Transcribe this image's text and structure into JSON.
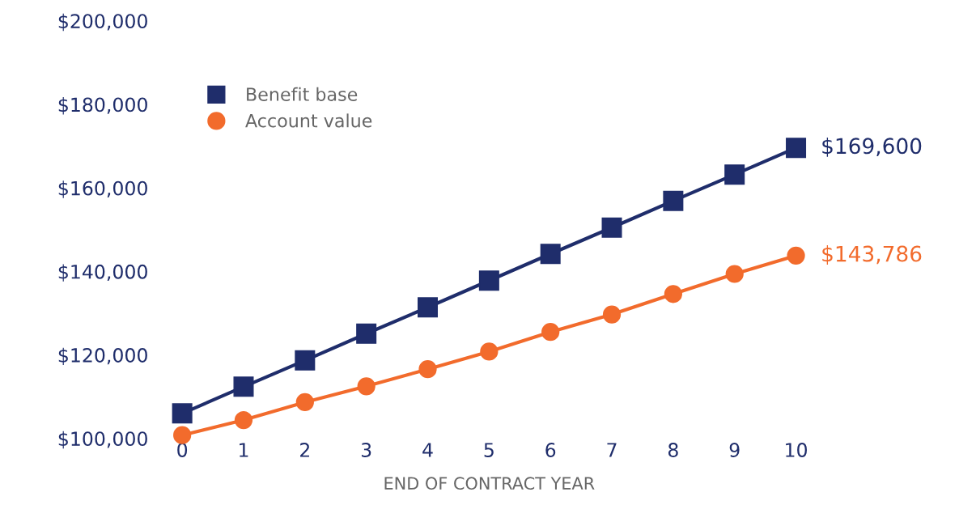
{
  "chart_data": {
    "type": "line",
    "xlabel": "END OF CONTRACT YEAR",
    "x": [
      0,
      1,
      2,
      3,
      4,
      5,
      6,
      7,
      8,
      9,
      10
    ],
    "series": [
      {
        "name": "Benefit base",
        "color": "#1f2d6b",
        "marker": "square",
        "values": [
          106000,
          112400,
          118700,
          125100,
          131400,
          137800,
          144200,
          150500,
          156900,
          163200,
          169600
        ]
      },
      {
        "name": "Account value",
        "color": "#f26b2c",
        "marker": "circle",
        "values": [
          100800,
          104400,
          108700,
          112500,
          116600,
          120800,
          125500,
          129700,
          134600,
          139400,
          143786
        ]
      }
    ],
    "xlim": [
      0,
      10
    ],
    "xticks": [
      0,
      1,
      2,
      3,
      4,
      5,
      6,
      7,
      8,
      9,
      10
    ],
    "ylim": [
      100000,
      200000
    ],
    "yticks": [
      {
        "value": 100000,
        "label": "$100,000"
      },
      {
        "value": 120000,
        "label": "$120,000"
      },
      {
        "value": 140000,
        "label": "$140,000"
      },
      {
        "value": 160000,
        "label": "$160,000"
      },
      {
        "value": 180000,
        "label": "$180,000"
      },
      {
        "value": 200000,
        "label": "$200,000"
      }
    ],
    "annotations": [
      {
        "text": "$169,600",
        "x": 10,
        "y": 169600
      },
      {
        "text": "$143,786",
        "x": 10,
        "y": 143786
      }
    ],
    "grid": false,
    "legend": "top left",
    "line_style": "solid"
  }
}
